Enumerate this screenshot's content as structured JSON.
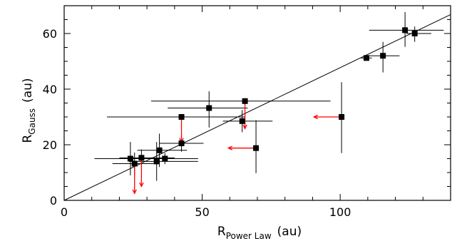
{
  "chart_data": {
    "type": "scatter",
    "xlabel": {
      "main": "R",
      "sub": "Power Law",
      "unit": "(au)"
    },
    "ylabel": {
      "main": "R",
      "sub": "Gauss",
      "unit": "(au)"
    },
    "xlim": [
      0,
      140
    ],
    "ylim": [
      0,
      70
    ],
    "xticks": [
      0,
      50,
      100
    ],
    "xtick_labels": [
      "0",
      "50",
      "100"
    ],
    "yticks": [
      0,
      20,
      40,
      60
    ],
    "ytick_labels": [
      "0",
      "20",
      "40",
      "60"
    ],
    "x_minor_step": 10,
    "y_minor_step": 5,
    "grid": false,
    "fit_line": {
      "x": [
        0,
        140
      ],
      "y": [
        0,
        66.8
      ]
    },
    "points": [
      {
        "x": 24,
        "y": 15,
        "xerr": [
          13,
          13
        ],
        "yerr": [
          6,
          6
        ]
      },
      {
        "x": 25.5,
        "y": 13.2,
        "xerr": [
          8,
          8
        ],
        "yerr": [
          4,
          4
        ]
      },
      {
        "x": 28,
        "y": 15.3,
        "xerr": [
          8,
          12
        ],
        "yerr": [
          3,
          3
        ]
      },
      {
        "x": 33.5,
        "y": 14,
        "xerr": [
          10,
          15
        ],
        "yerr": [
          7,
          7
        ]
      },
      {
        "x": 34.5,
        "y": 18,
        "xerr": [
          8,
          10
        ],
        "yerr": [
          6,
          6
        ]
      },
      {
        "x": 36.5,
        "y": 15,
        "xerr": [
          4,
          12
        ],
        "yerr": [
          2,
          2
        ]
      },
      {
        "x": 42.5,
        "y": 20.5,
        "xerr": [
          8,
          8
        ],
        "yerr": [
          3,
          3
        ]
      },
      {
        "x": 42.5,
        "y": 30,
        "xerr": [
          27,
          23
        ],
        "yerr": [
          1,
          1
        ]
      },
      {
        "x": 52.5,
        "y": 33.2,
        "xerr": [
          15,
          14
        ],
        "yerr": [
          7,
          6
        ]
      },
      {
        "x": 64.5,
        "y": 28.5,
        "xerr": [
          7,
          11
        ],
        "yerr": [
          4,
          4
        ]
      },
      {
        "x": 65.5,
        "y": 35.7,
        "xerr": [
          34,
          31
        ],
        "yerr": [
          1,
          1
        ]
      },
      {
        "x": 69.5,
        "y": 18.8,
        "xerr": [
          0,
          0
        ],
        "yerr": [
          9,
          10
        ]
      },
      {
        "x": 100.5,
        "y": 30,
        "xerr": [
          0,
          0
        ],
        "yerr": [
          13,
          12.5
        ]
      },
      {
        "x": 109.5,
        "y": 51.2,
        "xerr": [
          2,
          2
        ],
        "yerr": [
          0.8,
          0.8
        ]
      },
      {
        "x": 115.5,
        "y": 52,
        "xerr": [
          5,
          6
        ],
        "yerr": [
          6,
          5
        ]
      },
      {
        "x": 123.5,
        "y": 61.2,
        "xerr": [
          13,
          14
        ],
        "yerr": [
          6,
          6.5
        ]
      },
      {
        "x": 127,
        "y": 60,
        "xerr": [
          3,
          6
        ],
        "yerr": [
          3,
          2.5
        ]
      }
    ],
    "limit_arrows": [
      {
        "from": [
          25.5,
          13.5
        ],
        "to": [
          25.5,
          2.5
        ],
        "color": "#ff0000"
      },
      {
        "from": [
          28,
          15
        ],
        "to": [
          28,
          5
        ],
        "color": "#ff0000"
      },
      {
        "from": [
          42.5,
          30
        ],
        "to": [
          42.5,
          21
        ],
        "color": "#ff0000"
      },
      {
        "from": [
          65.5,
          35.5
        ],
        "to": [
          65.5,
          25.8
        ],
        "color": "#ff0000"
      },
      {
        "from": [
          69.5,
          18.8
        ],
        "to": [
          59.5,
          18.8
        ],
        "color": "#ff0000"
      },
      {
        "from": [
          100.5,
          30
        ],
        "to": [
          90.5,
          30
        ],
        "color": "#ff0000"
      }
    ],
    "colors": {
      "points": "#000000",
      "errorbars": "#000000",
      "fit": "#000000",
      "arrows": "#ff0000"
    }
  }
}
